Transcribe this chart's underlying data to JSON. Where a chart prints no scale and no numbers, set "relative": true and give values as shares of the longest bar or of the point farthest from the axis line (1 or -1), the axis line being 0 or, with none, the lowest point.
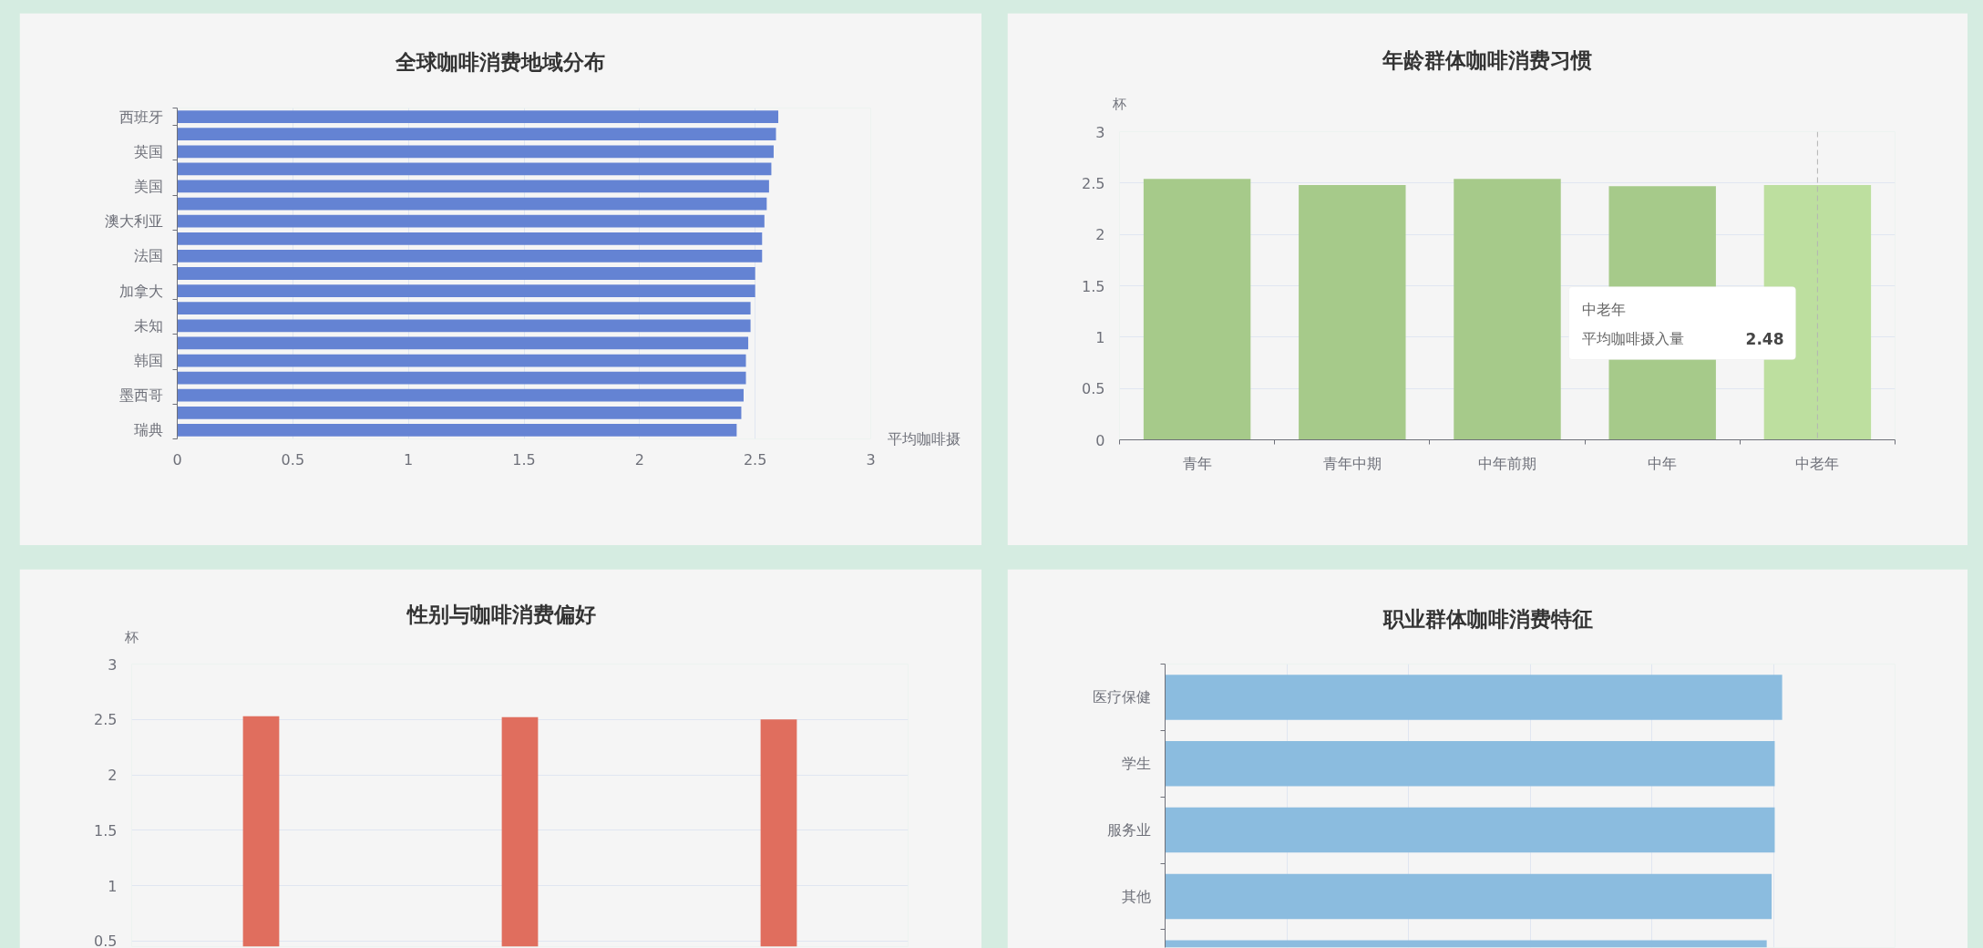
{
  "chart_data": [
    {
      "type": "bar",
      "orientation": "horizontal",
      "title": "全球咖啡消费地域分布",
      "xlabel": "平均咖啡摄",
      "categories": [
        "西班牙",
        null,
        "英国",
        null,
        "美国",
        null,
        "澳大利亚",
        null,
        "法国",
        null,
        "加拿大",
        null,
        "未知",
        null,
        "韩国",
        null,
        "墨西哥",
        null,
        "瑞典"
      ],
      "values": [
        2.6,
        2.59,
        2.58,
        2.57,
        2.56,
        2.55,
        2.54,
        2.53,
        2.53,
        2.5,
        2.5,
        2.48,
        2.48,
        2.47,
        2.46,
        2.46,
        2.45,
        2.44,
        2.42
      ],
      "color": "#6483d3",
      "xlim": [
        0,
        3
      ],
      "xticks": [
        0,
        0.5,
        1,
        1.5,
        2,
        2.5,
        3
      ],
      "grid": "x"
    },
    {
      "type": "bar",
      "title": "年龄群体咖啡消费习惯",
      "ylabel": "杯",
      "categories": [
        "青年",
        "青年中期",
        "中年前期",
        "中年",
        "中老年"
      ],
      "values": [
        2.54,
        2.48,
        2.54,
        2.47,
        2.48
      ],
      "colors": [
        "#a6ca8a",
        "#a6ca8a",
        "#a6ca8a",
        "#a6ca8a",
        "#bddf9f"
      ],
      "ylim": [
        0,
        3
      ],
      "yticks": [
        0,
        0.5,
        1,
        1.5,
        2,
        2.5,
        3
      ],
      "grid": "y",
      "ref_lines": [
        {
          "axis": "x",
          "value": "中老年",
          "color": "#b3b3b3",
          "line_style": "dashed"
        }
      ],
      "annotations": [
        "中老年",
        "平均咖啡摄入量 2.48"
      ]
    },
    {
      "type": "bar",
      "title": "性别与咖啡消费偏好",
      "ylabel": "杯",
      "categories": [
        null,
        null,
        null
      ],
      "values": [
        2.53,
        2.52,
        2.5
      ],
      "color": "#e06e5e",
      "ylim": [
        0.45,
        3
      ],
      "yticks": [
        0.5,
        1,
        1.5,
        2,
        2.5,
        3
      ],
      "grid": "y",
      "tick_labels": "y"
    },
    {
      "type": "bar",
      "orientation": "horizontal",
      "title": "职业群体咖啡消费特征",
      "categories": [
        "医疗保健",
        "学生",
        "服务业",
        "其他",
        null
      ],
      "values": [
        1,
        0.988,
        0.988,
        0.983,
        0.975
      ],
      "color": "#8bbcdf",
      "relative": true,
      "grid": "x"
    }
  ]
}
